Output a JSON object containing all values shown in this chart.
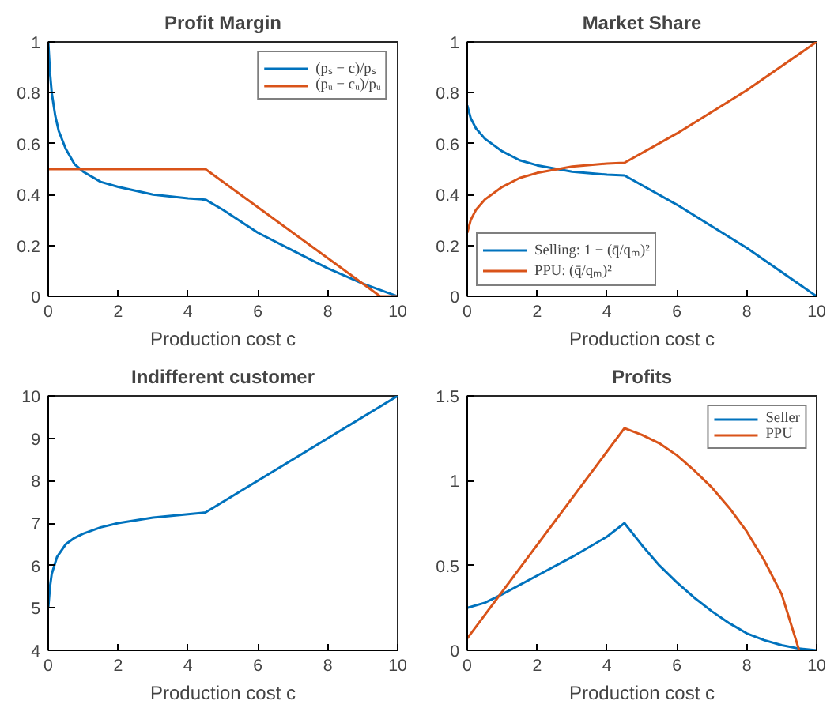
{
  "chart_data": [
    {
      "type": "line",
      "title": "Profit Margin",
      "xlabel": "Production cost c",
      "xlim": [
        0,
        10
      ],
      "xticks": [
        0,
        2,
        4,
        6,
        8,
        10
      ],
      "ylim": [
        0,
        1
      ],
      "yticks": [
        0,
        0.2,
        0.4,
        0.6,
        0.8,
        1
      ],
      "grid": false,
      "legend": "top right",
      "series": [
        {
          "name": "(pₛ − c)/pₛ",
          "color": "#0072bd",
          "x": [
            0,
            0.05,
            0.1,
            0.2,
            0.3,
            0.5,
            0.75,
            1,
            1.5,
            2,
            3,
            4,
            4.5,
            5,
            6,
            7,
            8,
            9,
            10
          ],
          "values": [
            1,
            0.88,
            0.8,
            0.71,
            0.65,
            0.58,
            0.52,
            0.49,
            0.45,
            0.43,
            0.4,
            0.385,
            0.38,
            0.34,
            0.25,
            0.18,
            0.11,
            0.05,
            0
          ]
        },
        {
          "name": "(pᵤ − cᵤ)/pᵤ",
          "color": "#d95319",
          "x": [
            0,
            4.5,
            9.5,
            10
          ],
          "values": [
            0.5,
            0.5,
            0,
            0
          ]
        }
      ]
    },
    {
      "type": "line",
      "title": "Market Share",
      "xlabel": "Production cost c",
      "xlim": [
        0,
        10
      ],
      "xticks": [
        0,
        2,
        4,
        6,
        8,
        10
      ],
      "ylim": [
        0,
        1
      ],
      "yticks": [
        0,
        0.2,
        0.4,
        0.6,
        0.8,
        1
      ],
      "grid": false,
      "legend": "bottom left",
      "series": [
        {
          "name": "Selling: 1 − (q̄/qₘ)²",
          "color": "#0072bd",
          "x": [
            0,
            0.1,
            0.25,
            0.5,
            1,
            1.5,
            2,
            3,
            4,
            4.5,
            6,
            8,
            10
          ],
          "values": [
            0.75,
            0.7,
            0.66,
            0.62,
            0.57,
            0.535,
            0.515,
            0.49,
            0.478,
            0.475,
            0.36,
            0.19,
            0
          ]
        },
        {
          "name": "PPU: (q̄/qₘ)²",
          "color": "#d95319",
          "x": [
            0,
            0.1,
            0.25,
            0.5,
            1,
            1.5,
            2,
            3,
            4,
            4.5,
            6,
            8,
            10
          ],
          "values": [
            0.25,
            0.3,
            0.34,
            0.38,
            0.43,
            0.465,
            0.485,
            0.51,
            0.522,
            0.525,
            0.64,
            0.81,
            1
          ]
        }
      ]
    },
    {
      "type": "line",
      "title": "Indifferent customer",
      "xlabel": "Production cost c",
      "xlim": [
        0,
        10
      ],
      "xticks": [
        0,
        2,
        4,
        6,
        8,
        10
      ],
      "ylim": [
        4,
        10
      ],
      "yticks": [
        4,
        5,
        6,
        7,
        8,
        9,
        10
      ],
      "grid": false,
      "legend": false,
      "series": [
        {
          "color": "#0072bd",
          "x": [
            0,
            0.05,
            0.1,
            0.25,
            0.5,
            0.75,
            1,
            1.5,
            2,
            3,
            4,
            4.5,
            10
          ],
          "values": [
            5,
            5.5,
            5.8,
            6.2,
            6.5,
            6.65,
            6.75,
            6.9,
            7.0,
            7.13,
            7.21,
            7.25,
            10
          ]
        }
      ]
    },
    {
      "type": "line",
      "title": "Profits",
      "xlabel": "Production cost c",
      "xlim": [
        0,
        10
      ],
      "xticks": [
        0,
        2,
        4,
        6,
        8,
        10
      ],
      "ylim": [
        0,
        1.5
      ],
      "yticks": [
        0,
        0.5,
        1,
        1.5
      ],
      "grid": false,
      "legend": "top right",
      "series": [
        {
          "name": "Seller",
          "color": "#0072bd",
          "x": [
            0,
            0.5,
            1,
            2,
            3,
            4,
            4.5,
            5,
            5.5,
            6,
            6.5,
            7,
            7.5,
            8,
            8.5,
            9,
            9.5,
            10
          ],
          "values": [
            0.25,
            0.28,
            0.33,
            0.44,
            0.55,
            0.67,
            0.75,
            0.62,
            0.5,
            0.4,
            0.31,
            0.23,
            0.16,
            0.1,
            0.06,
            0.03,
            0.01,
            0
          ]
        },
        {
          "name": "PPU",
          "color": "#d95319",
          "x": [
            0,
            4.5,
            5,
            5.5,
            6,
            6.5,
            7,
            7.5,
            8,
            8.5,
            9,
            9.5
          ],
          "values": [
            0.07,
            1.31,
            1.27,
            1.22,
            1.15,
            1.06,
            0.96,
            0.84,
            0.7,
            0.53,
            0.33,
            0
          ]
        }
      ]
    }
  ]
}
